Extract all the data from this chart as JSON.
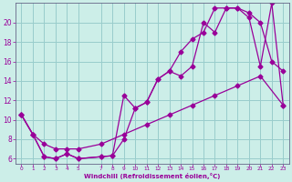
{
  "xlabel": "Windchill (Refroidissement éolien,°C)",
  "bg_color": "#cceee8",
  "grid_color": "#99cccc",
  "line_color": "#990099",
  "line1_x": [
    0,
    1,
    2,
    3,
    4,
    5,
    7,
    8,
    9,
    10,
    11,
    12,
    13,
    14,
    15,
    16,
    17,
    18,
    19,
    20,
    21,
    22,
    23
  ],
  "line1_y": [
    10.5,
    8.5,
    6.2,
    6.0,
    6.5,
    6.0,
    6.2,
    6.3,
    8.0,
    11.2,
    11.8,
    14.2,
    15.0,
    17.0,
    18.3,
    19.0,
    21.5,
    21.5,
    21.5,
    21.0,
    20.0,
    16.0,
    15.0
  ],
  "line2_x": [
    0,
    1,
    2,
    3,
    4,
    5,
    7,
    8,
    9,
    10,
    11,
    12,
    13,
    14,
    15,
    16,
    17,
    18,
    19,
    20,
    21,
    22,
    23
  ],
  "line2_y": [
    10.5,
    8.5,
    6.2,
    6.0,
    6.5,
    6.0,
    6.2,
    6.3,
    12.5,
    11.2,
    11.8,
    14.2,
    15.0,
    14.5,
    15.5,
    20.0,
    19.0,
    21.5,
    21.5,
    20.5,
    15.5,
    22.0,
    11.5
  ],
  "line3_x": [
    0,
    1,
    2,
    3,
    4,
    5,
    7,
    9,
    11,
    13,
    15,
    17,
    19,
    21,
    23
  ],
  "line3_y": [
    10.5,
    8.5,
    7.5,
    7.0,
    7.0,
    7.0,
    7.5,
    8.5,
    9.5,
    10.5,
    11.5,
    12.5,
    13.5,
    14.5,
    11.5
  ],
  "xlim": [
    -0.5,
    23.5
  ],
  "ylim": [
    5.5,
    22.0
  ],
  "yticks": [
    6,
    8,
    10,
    12,
    14,
    16,
    18,
    20
  ],
  "xticks": [
    0,
    1,
    2,
    3,
    4,
    5,
    7,
    8,
    9,
    10,
    11,
    12,
    13,
    14,
    15,
    16,
    17,
    18,
    19,
    20,
    21,
    22,
    23
  ]
}
